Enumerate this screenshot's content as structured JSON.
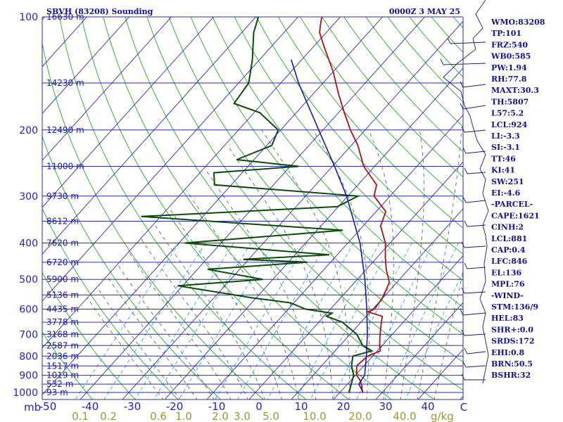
{
  "header": {
    "station": "SBVH (83208) Sounding",
    "datetime": "0000Z  3 MAY 25"
  },
  "indices": [
    "WMO:83208",
    "TP:101",
    "FRZ:540",
    "WB0:585",
    "PW:1.94",
    "RH:77.8",
    "MAXT:30.3",
    "TH:5807",
    "L57:5.2",
    "LCL:924",
    "LI:-3.3",
    "SI:-3.1",
    "TT:46",
    "KI:41",
    "SW:251",
    "EI:-4.6",
    "-PARCEL-",
    "CAPE:1621",
    "CINH:2",
    "LCL:881",
    "CAP:0.4",
    "LFC:846",
    "EL:136",
    "MPL:76",
    "-WIND-",
    "STM:136/9",
    "HEL:83",
    "SHR+:0.0",
    "SRDS:172",
    "EHI:0.8",
    "BRN:50.5",
    "BSHR:32"
  ],
  "colors": {
    "isobar": "#2a2ab8",
    "isotherm": "#2a2ab8",
    "dry_adiabat": "#22aa22",
    "moist_adiabat": "#5a6e5a",
    "mixing_ratio": "#2aa8d8",
    "temperature": "#aa1111",
    "dewpoint": "#0a4a0a",
    "parcel": "#1a1aaa",
    "text": "#1e1ecc",
    "mixing_ratio_labels": "#999933",
    "wind_barbs": "#1a1a6a"
  },
  "chart_data": {
    "type": "line",
    "title": "SBVH (83208) Sounding",
    "subtitle": "0000Z  3 MAY 25",
    "xlabel": "C",
    "ylabel": "mb",
    "pressure_labels": [
      100,
      200,
      300,
      400,
      500,
      600,
      700,
      800,
      900,
      1000
    ],
    "temperature_ticks": [
      -50,
      -40,
      -30,
      -20,
      -10,
      0,
      10,
      20,
      30,
      40
    ],
    "mixing_ratio_labels": [
      "0.1",
      "0.2",
      "0.6",
      "1.0",
      "2.0",
      "3.0",
      "5.0",
      "10.0",
      "20.0",
      "40.0"
    ],
    "mixing_ratio_unit": "g/kg",
    "height_labels": [
      {
        "p": 100,
        "text": "16630 m"
      },
      {
        "p": 150,
        "text": "14230 m"
      },
      {
        "p": 200,
        "text": "12490 m"
      },
      {
        "p": 250,
        "text": "11000 m"
      },
      {
        "p": 300,
        "text": "9730 m"
      },
      {
        "p": 350,
        "text": "8612 m"
      },
      {
        "p": 400,
        "text": "7620 m"
      },
      {
        "p": 450,
        "text": "6720 m"
      },
      {
        "p": 500,
        "text": "5900 m"
      },
      {
        "p": 550,
        "text": "5136 m"
      },
      {
        "p": 600,
        "text": "4435 m"
      },
      {
        "p": 650,
        "text": "3778 m"
      },
      {
        "p": 700,
        "text": "3168 m"
      },
      {
        "p": 750,
        "text": "2587 m"
      },
      {
        "p": 800,
        "text": "2036 m"
      },
      {
        "p": 850,
        "text": "1517 m"
      },
      {
        "p": 900,
        "text": "1019 m"
      },
      {
        "p": 950,
        "text": "532 m"
      },
      {
        "p": 1000,
        "text": "93 m"
      }
    ],
    "series": [
      {
        "name": "temperature",
        "points": [
          [
            1003,
            25.5
          ],
          [
            950,
            23.3
          ],
          [
            925,
            22.0
          ],
          [
            900,
            20.3
          ],
          [
            850,
            18.3
          ],
          [
            800,
            18.8
          ],
          [
            775,
            20.7
          ],
          [
            750,
            19.4
          ],
          [
            700,
            17.1
          ],
          [
            660,
            15.3
          ],
          [
            627,
            13.8
          ],
          [
            610,
            9.4
          ],
          [
            600,
            10.4
          ],
          [
            560,
            9.9
          ],
          [
            510,
            8.3
          ],
          [
            470,
            4.7
          ],
          [
            440,
            2.2
          ],
          [
            400,
            -1.1
          ],
          [
            360,
            -5.9
          ],
          [
            330,
            -7.7
          ],
          [
            300,
            -13.8
          ],
          [
            280,
            -15.6
          ],
          [
            250,
            -22.6
          ],
          [
            220,
            -28.4
          ],
          [
            200,
            -33.5
          ],
          [
            180,
            -38.6
          ],
          [
            160,
            -44.1
          ],
          [
            140,
            -50.0
          ],
          [
            120,
            -57.5
          ],
          [
            110,
            -61.6
          ],
          [
            105,
            -63.0
          ],
          [
            100,
            -64.4
          ]
        ]
      },
      {
        "name": "dewpoint",
        "points": [
          [
            1003,
            22.2
          ],
          [
            950,
            20.9
          ],
          [
            900,
            19.6
          ],
          [
            850,
            17.1
          ],
          [
            800,
            15.3
          ],
          [
            775,
            18.7
          ],
          [
            750,
            15.4
          ],
          [
            700,
            11.6
          ],
          [
            650,
            5.6
          ],
          [
            627,
            0.6
          ],
          [
            615,
            1.2
          ],
          [
            600,
            -5.9
          ],
          [
            577,
            -10.9
          ],
          [
            560,
            -20.9
          ],
          [
            520,
            -41.1
          ],
          [
            500,
            -22.4
          ],
          [
            470,
            -37.6
          ],
          [
            450,
            -15.5
          ],
          [
            442,
            -31.3
          ],
          [
            430,
            -11.9
          ],
          [
            400,
            -48.6
          ],
          [
            370,
            -13.9
          ],
          [
            340,
            -64.6
          ],
          [
            320,
            -20.2
          ],
          [
            300,
            -17.6
          ],
          [
            280,
            -54.0
          ],
          [
            260,
            -56.7
          ],
          [
            250,
            -38.0
          ],
          [
            240,
            -54.1
          ],
          [
            220,
            -48.8
          ],
          [
            200,
            -50.6
          ],
          [
            180,
            -58.6
          ],
          [
            170,
            -66.7
          ],
          [
            150,
            -67.6
          ],
          [
            130,
            -71.7
          ],
          [
            110,
            -77.2
          ],
          [
            100,
            -79.4
          ]
        ]
      },
      {
        "name": "parcel",
        "points": [
          [
            1000,
            25.5
          ],
          [
            950,
            22.7
          ],
          [
            900,
            22.2
          ],
          [
            850,
            20.4
          ],
          [
            800,
            18.5
          ],
          [
            700,
            14.1
          ],
          [
            600,
            8.6
          ],
          [
            500,
            1.8
          ],
          [
            400,
            -7.1
          ],
          [
            300,
            -20.3
          ],
          [
            250,
            -29.5
          ],
          [
            200,
            -41.0
          ],
          [
            150,
            -55.8
          ],
          [
            130,
            -62.5
          ]
        ]
      }
    ]
  }
}
